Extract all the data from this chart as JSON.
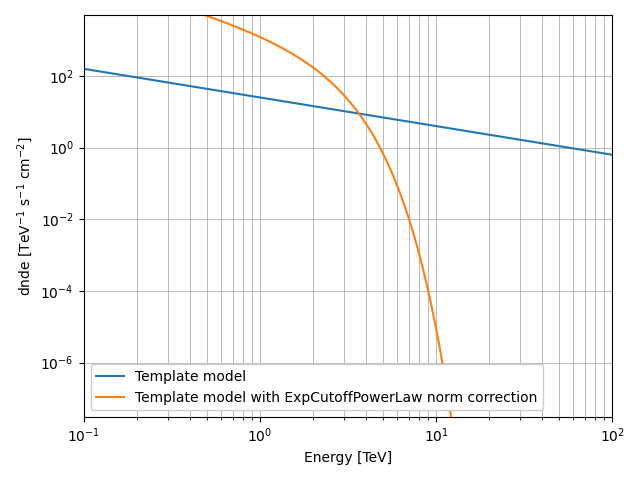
{
  "xlabel": "Energy [TeV]",
  "ylabel": "dnde [TeV$^{-1}$ s$^{-1}$ cm$^{-2}$]",
  "xlim": [
    0.1,
    100
  ],
  "ylim": [
    3e-08,
    5000.0
  ],
  "label_template": "Template model",
  "label_cutoff": "Template model with ExpCutoffPowerLaw norm correction",
  "color_template": "#1f77b4",
  "color_cutoff": "#ff7f0e",
  "legend_loc": "lower left",
  "grid_color": "#b0b0b0",
  "figsize": [
    6.4,
    4.8
  ],
  "dpi": 100,
  "template_amplitude": 25.0,
  "template_index": -0.8,
  "cutoff_amplitude": 2000.0,
  "cutoff_index": -1.5,
  "cutoff_lambda": 0.5,
  "cutoff_alpha": 1.5
}
